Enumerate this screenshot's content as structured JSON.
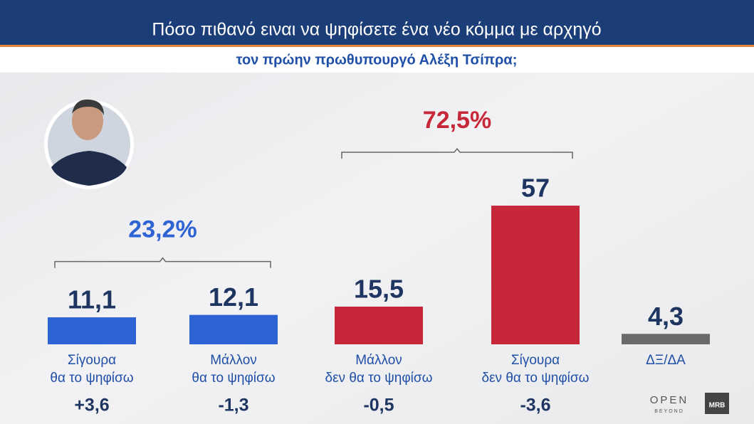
{
  "chart_data": {
    "type": "bar",
    "title": "Πόσο πιθανό ειναι να ψηφίσετε ένα νέο κόμμα με αρχηγό",
    "subtitle": "τον πρώην πρωθυπουργό Αλέξη Τσίπρα;",
    "categories": [
      [
        "Σίγουρα",
        "θα το ψηφίσω"
      ],
      [
        "Μάλλον",
        "θα το ψηφίσω"
      ],
      [
        "Μάλλον",
        "δεν θα το ψηφίσω"
      ],
      [
        "Σίγουρα",
        "δεν θα το ψηφίσω"
      ],
      [
        "ΔΞ/ΔΑ"
      ]
    ],
    "values": [
      11.1,
      12.1,
      15.5,
      57,
      4.3
    ],
    "value_labels": [
      "11,1",
      "12,1",
      "15,5",
      "57",
      "4,3"
    ],
    "colors": [
      "#2e63d3",
      "#2e63d3",
      "#c6283a",
      "#c6283a",
      "#6a6a6a"
    ],
    "changes": [
      {
        "value": 3.6,
        "label": "+3,6"
      },
      {
        "value": -1.3,
        "label": "-1,3"
      },
      {
        "value": -0.5,
        "label": "-0,5"
      },
      {
        "value": -3.6,
        "label": "-3,6"
      },
      null
    ],
    "groups": [
      {
        "value": 23.2,
        "label": "23,2%",
        "categories": [
          0,
          1
        ],
        "color": "#2e63d3"
      },
      {
        "value": 72.5,
        "label": "72,5%",
        "categories": [
          2,
          3
        ],
        "color": "#c6283a"
      }
    ],
    "logos": [
      "OPEN",
      "BEYOND",
      "MRB"
    ]
  }
}
